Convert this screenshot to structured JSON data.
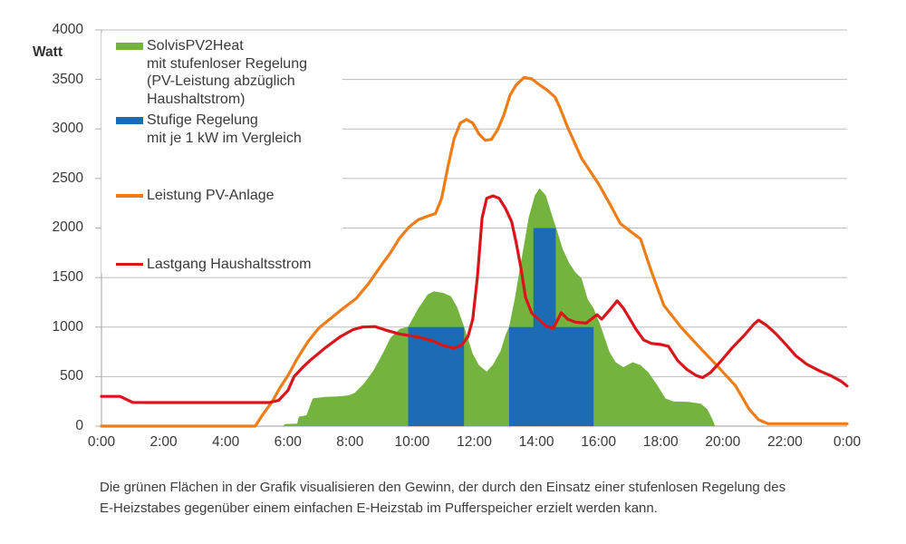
{
  "axis": {
    "watt_label": "Watt"
  },
  "caption": {
    "lines": [
      "Die grünen Flächen in der Grafik visualisieren den Gewinn, der durch den Einsatz einer stufenlosen Regelung des",
      "E-Heizstabes gegenüber einem einfachen E-Heizstab im Pufferspeicher erzielt werden kann."
    ]
  },
  "legend": {
    "items": [
      {
        "swatch": "area",
        "color": "#74b43e",
        "lines": [
          "SolvisPV2Heat",
          "mit stufenloser Regelung",
          "(PV-Leistung abzüglich",
          "Haushaltstrom)"
        ]
      },
      {
        "swatch": "area",
        "color": "#1b6cb5",
        "lines": [
          "Stufige Regelung",
          "mit  je 1 kW im Vergleich"
        ]
      },
      {
        "swatch": "line",
        "color": "#ee7d18",
        "lines": [
          "Leistung PV-Anlage"
        ]
      },
      {
        "swatch": "line",
        "color": "#d9151c",
        "lines": [
          "Lastgang Haushaltsstrom"
        ]
      }
    ]
  },
  "chart_data": {
    "type": "area",
    "title": "",
    "xlabel": "",
    "ylabel": "Watt",
    "ylim": [
      0,
      4000
    ],
    "xlim_hours": [
      0,
      24
    ],
    "grid": true,
    "legend_position": "top-left",
    "grid_color": "#bcbcbc",
    "axis_color": "#b0b0b0",
    "y_ticks": [
      0,
      500,
      1000,
      1500,
      2000,
      2500,
      3000,
      3500,
      4000
    ],
    "x_ticks": [
      "0:00",
      "2:00",
      "4:00",
      "6:00",
      "8:00",
      "10:00",
      "12:00",
      "14:00",
      "16:00",
      "18:00",
      "20:00",
      "22:00",
      "0:00"
    ],
    "series": [
      {
        "id": "pv2heat-area",
        "name": "SolvisPV2Heat mit stufenloser Regelung (PV-Leistung abzüglich Haushaltstrom)",
        "type": "area",
        "color": "#74b43e",
        "points": [
          [
            5.85,
            0
          ],
          [
            5.9,
            20
          ],
          [
            6.3,
            25
          ],
          [
            6.35,
            95
          ],
          [
            6.6,
            110
          ],
          [
            6.8,
            280
          ],
          [
            7.2,
            295
          ],
          [
            7.6,
            300
          ],
          [
            7.95,
            310
          ],
          [
            8.15,
            335
          ],
          [
            8.45,
            430
          ],
          [
            8.75,
            560
          ],
          [
            9.05,
            730
          ],
          [
            9.3,
            890
          ],
          [
            9.6,
            980
          ],
          [
            9.87,
            1005
          ],
          [
            10.2,
            1190
          ],
          [
            10.5,
            1330
          ],
          [
            10.7,
            1360
          ],
          [
            11.0,
            1345
          ],
          [
            11.25,
            1310
          ],
          [
            11.45,
            1200
          ],
          [
            11.67,
            1005
          ],
          [
            11.95,
            730
          ],
          [
            12.15,
            615
          ],
          [
            12.4,
            550
          ],
          [
            12.6,
            620
          ],
          [
            12.85,
            760
          ],
          [
            13.0,
            915
          ],
          [
            13.12,
            1005
          ],
          [
            13.3,
            1280
          ],
          [
            13.45,
            1560
          ],
          [
            13.6,
            1830
          ],
          [
            13.75,
            2105
          ],
          [
            13.95,
            2330
          ],
          [
            14.1,
            2400
          ],
          [
            14.3,
            2330
          ],
          [
            14.5,
            2130
          ],
          [
            14.65,
            1985
          ],
          [
            14.85,
            1785
          ],
          [
            15.05,
            1650
          ],
          [
            15.25,
            1555
          ],
          [
            15.45,
            1495
          ],
          [
            15.65,
            1280
          ],
          [
            15.84,
            1190
          ],
          [
            16.05,
            1025
          ],
          [
            16.2,
            890
          ],
          [
            16.35,
            750
          ],
          [
            16.55,
            645
          ],
          [
            16.8,
            595
          ],
          [
            17.1,
            645
          ],
          [
            17.35,
            615
          ],
          [
            17.6,
            545
          ],
          [
            17.9,
            410
          ],
          [
            18.15,
            280
          ],
          [
            18.4,
            250
          ],
          [
            18.9,
            245
          ],
          [
            19.3,
            225
          ],
          [
            19.5,
            170
          ],
          [
            19.65,
            80
          ],
          [
            19.75,
            0
          ]
        ]
      },
      {
        "id": "stepped-bars",
        "name": "Stufige Regelung mit je 1 kW im Vergleich",
        "type": "bars",
        "color": "#1b6cb5",
        "bars": [
          {
            "from": 9.87,
            "to": 11.67,
            "watt": 1000
          },
          {
            "from": 13.12,
            "to": 15.84,
            "watt": 1000
          },
          {
            "from": 13.9,
            "to": 14.62,
            "watt": 2000
          }
        ]
      },
      {
        "id": "pv-line",
        "name": "Leistung PV-Anlage",
        "type": "line",
        "color": "#ee7d18",
        "points": [
          [
            0,
            0
          ],
          [
            4.95,
            0
          ],
          [
            5.2,
            120
          ],
          [
            5.5,
            250
          ],
          [
            5.75,
            390
          ],
          [
            6.0,
            510
          ],
          [
            6.3,
            680
          ],
          [
            6.65,
            855
          ],
          [
            7.0,
            990
          ],
          [
            7.35,
            1080
          ],
          [
            7.7,
            1170
          ],
          [
            8.2,
            1290
          ],
          [
            8.6,
            1440
          ],
          [
            9.0,
            1620
          ],
          [
            9.3,
            1750
          ],
          [
            9.6,
            1900
          ],
          [
            9.9,
            2010
          ],
          [
            10.2,
            2085
          ],
          [
            10.5,
            2120
          ],
          [
            10.75,
            2145
          ],
          [
            10.95,
            2300
          ],
          [
            11.15,
            2620
          ],
          [
            11.35,
            2900
          ],
          [
            11.55,
            3060
          ],
          [
            11.75,
            3095
          ],
          [
            11.95,
            3060
          ],
          [
            12.15,
            2950
          ],
          [
            12.35,
            2885
          ],
          [
            12.55,
            2895
          ],
          [
            12.75,
            2990
          ],
          [
            12.95,
            3140
          ],
          [
            13.15,
            3340
          ],
          [
            13.35,
            3445
          ],
          [
            13.6,
            3520
          ],
          [
            13.85,
            3505
          ],
          [
            14.1,
            3445
          ],
          [
            14.35,
            3390
          ],
          [
            14.6,
            3320
          ],
          [
            14.75,
            3220
          ],
          [
            15.0,
            3020
          ],
          [
            15.45,
            2705
          ],
          [
            16.0,
            2445
          ],
          [
            16.35,
            2250
          ],
          [
            16.7,
            2045
          ],
          [
            17.05,
            1960
          ],
          [
            17.35,
            1890
          ],
          [
            17.7,
            1560
          ],
          [
            18.1,
            1220
          ],
          [
            18.65,
            1000
          ],
          [
            19.25,
            795
          ],
          [
            19.8,
            615
          ],
          [
            20.4,
            410
          ],
          [
            20.85,
            170
          ],
          [
            21.15,
            65
          ],
          [
            21.45,
            25
          ],
          [
            24,
            25
          ]
        ]
      },
      {
        "id": "household-line",
        "name": "Lastgang Haushaltsstrom",
        "type": "line",
        "color": "#d9151c",
        "points": [
          [
            0,
            300
          ],
          [
            0.6,
            300
          ],
          [
            1.0,
            240
          ],
          [
            1.5,
            238
          ],
          [
            5.4,
            238
          ],
          [
            5.7,
            260
          ],
          [
            6.0,
            360
          ],
          [
            6.2,
            500
          ],
          [
            6.5,
            600
          ],
          [
            6.7,
            660
          ],
          [
            7.2,
            790
          ],
          [
            7.7,
            905
          ],
          [
            8.1,
            975
          ],
          [
            8.4,
            1000
          ],
          [
            8.8,
            1005
          ],
          [
            9.2,
            965
          ],
          [
            9.6,
            930
          ],
          [
            10.2,
            900
          ],
          [
            10.7,
            855
          ],
          [
            11.0,
            815
          ],
          [
            11.35,
            785
          ],
          [
            11.6,
            820
          ],
          [
            11.8,
            905
          ],
          [
            11.95,
            1080
          ],
          [
            12.1,
            1500
          ],
          [
            12.25,
            2100
          ],
          [
            12.4,
            2300
          ],
          [
            12.6,
            2325
          ],
          [
            12.8,
            2300
          ],
          [
            13.0,
            2200
          ],
          [
            13.2,
            2065
          ],
          [
            13.35,
            1850
          ],
          [
            13.5,
            1600
          ],
          [
            13.65,
            1300
          ],
          [
            13.85,
            1140
          ],
          [
            14.05,
            1085
          ],
          [
            14.3,
            1010
          ],
          [
            14.55,
            990
          ],
          [
            14.8,
            1145
          ],
          [
            15.0,
            1080
          ],
          [
            15.25,
            1050
          ],
          [
            15.6,
            1040
          ],
          [
            15.95,
            1125
          ],
          [
            16.1,
            1080
          ],
          [
            16.35,
            1170
          ],
          [
            16.6,
            1265
          ],
          [
            16.8,
            1190
          ],
          [
            17.0,
            1085
          ],
          [
            17.2,
            980
          ],
          [
            17.45,
            870
          ],
          [
            17.7,
            835
          ],
          [
            18.0,
            825
          ],
          [
            18.25,
            805
          ],
          [
            18.55,
            660
          ],
          [
            18.85,
            570
          ],
          [
            19.15,
            510
          ],
          [
            19.35,
            490
          ],
          [
            19.6,
            540
          ],
          [
            19.95,
            660
          ],
          [
            20.3,
            790
          ],
          [
            20.7,
            920
          ],
          [
            21.0,
            1030
          ],
          [
            21.15,
            1070
          ],
          [
            21.4,
            1020
          ],
          [
            21.7,
            935
          ],
          [
            22.0,
            835
          ],
          [
            22.35,
            710
          ],
          [
            22.7,
            625
          ],
          [
            23.1,
            560
          ],
          [
            23.5,
            505
          ],
          [
            23.8,
            455
          ],
          [
            24,
            405
          ]
        ]
      }
    ]
  }
}
